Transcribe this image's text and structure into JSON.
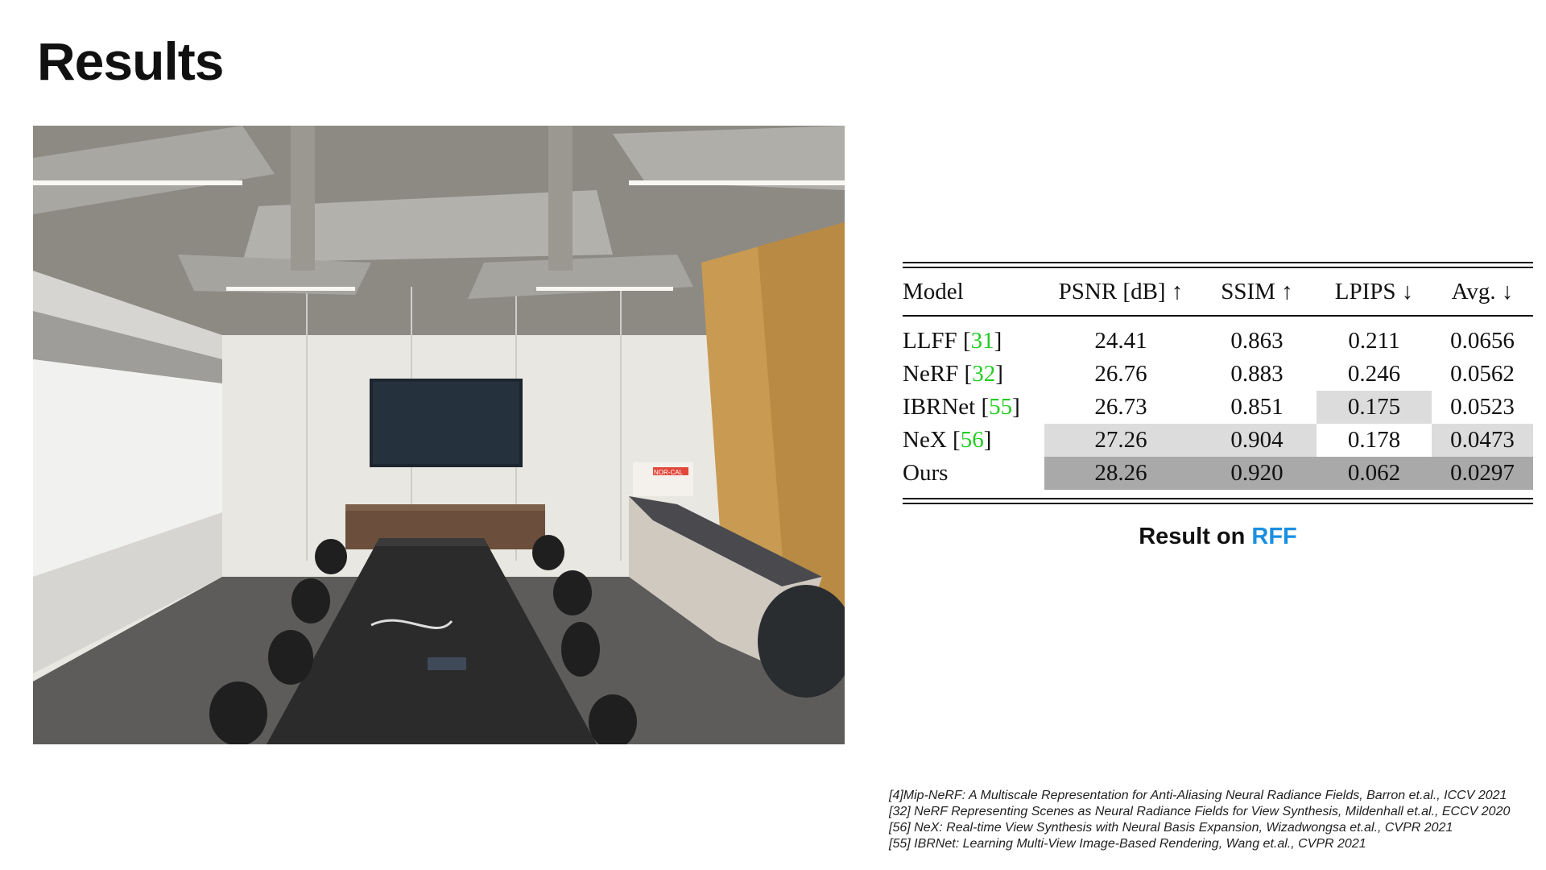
{
  "slide": {
    "title": "Results"
  },
  "table": {
    "headers": [
      "Model",
      "PSNR [dB] ↑",
      "SSIM ↑",
      "LPIPS ↓",
      "Avg. ↓"
    ],
    "rows": [
      {
        "model": "LLFF",
        "ref": "31",
        "psnr": "24.41",
        "ssim": "0.863",
        "lpips": "0.211",
        "avg": "0.0656"
      },
      {
        "model": "NeRF",
        "ref": "32",
        "psnr": "26.76",
        "ssim": "0.883",
        "lpips": "0.246",
        "avg": "0.0562"
      },
      {
        "model": "IBRNet",
        "ref": "55",
        "psnr": "26.73",
        "ssim": "0.851",
        "lpips": "0.175",
        "avg": "0.0523"
      },
      {
        "model": "NeX",
        "ref": "56",
        "psnr": "27.26",
        "ssim": "0.904",
        "lpips": "0.178",
        "avg": "0.0473"
      },
      {
        "model": "Ours",
        "ref": "",
        "psnr": "28.26",
        "ssim": "0.920",
        "lpips": "0.062",
        "avg": "0.0297"
      }
    ],
    "highlight_colors": {
      "light": "#dcdcdc",
      "dark": "#a9a9a9"
    },
    "ref_color": "#22cc22"
  },
  "caption": {
    "prefix": "Result on ",
    "highlight": "RFF",
    "highlight_color": "#1a8fe0"
  },
  "references": [
    "[4]Mip-NeRF: A Multiscale Representation for Anti-Aliasing Neural Radiance Fields, Barron et.al., ICCV 2021",
    "[32] NeRF Representing Scenes as Neural Radiance Fields for View Synthesis, Mildenhall et.al., ECCV 2020",
    "[56] NeX: Real-time View Synthesis with Neural Basis Expansion, Wizadwongsa et.al., CVPR 2021",
    "[55] IBRNet: Learning Multi-View Image-Based Rendering, Wang et.al., CVPR 2021"
  ],
  "photo": {
    "box_label": "NOR-CAL"
  }
}
